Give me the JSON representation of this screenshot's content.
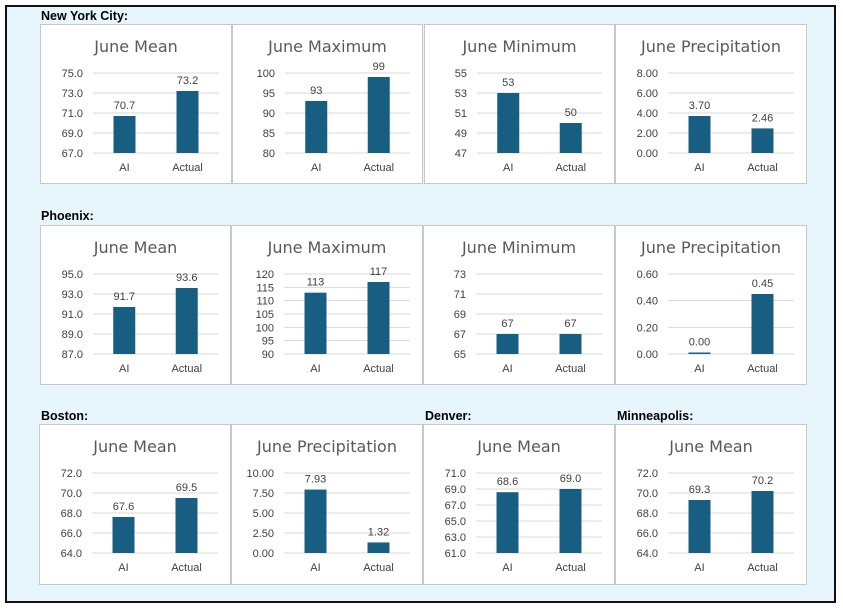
{
  "sections": {
    "nyc": "New York City:",
    "phoenix": "Phoenix:",
    "boston": "Boston:",
    "denver": "Denver:",
    "minneapolis": "Minneapolis:"
  },
  "theme": {
    "bar_color": "#175e82",
    "grid_color": "#d9d9d9",
    "text_color": "#404040"
  },
  "chart_data": [
    {
      "id": "nyc-mean",
      "type": "bar",
      "title": "June Mean",
      "categories": [
        "AI",
        "Actual"
      ],
      "values": [
        70.7,
        73.2
      ],
      "value_labels": [
        "70.7",
        "73.2"
      ],
      "yticks": [
        "67.0",
        "69.0",
        "71.0",
        "73.0",
        "75.0"
      ],
      "ylim": [
        67,
        75
      ]
    },
    {
      "id": "nyc-max",
      "type": "bar",
      "title": "June Maximum",
      "categories": [
        "AI",
        "Actual"
      ],
      "values": [
        93,
        99
      ],
      "value_labels": [
        "93",
        "99"
      ],
      "yticks": [
        "80",
        "85",
        "90",
        "95",
        "100"
      ],
      "ylim": [
        80,
        100
      ]
    },
    {
      "id": "nyc-min",
      "type": "bar",
      "title": "June Minimum",
      "categories": [
        "AI",
        "Actual"
      ],
      "values": [
        53,
        50
      ],
      "value_labels": [
        "53",
        "50"
      ],
      "yticks": [
        "47",
        "49",
        "51",
        "53",
        "55"
      ],
      "ylim": [
        47,
        55
      ]
    },
    {
      "id": "nyc-precip",
      "type": "bar",
      "title": "June Precipitation",
      "categories": [
        "AI",
        "Actual"
      ],
      "values": [
        3.7,
        2.46
      ],
      "value_labels": [
        "3.70",
        "2.46"
      ],
      "yticks": [
        "0.00",
        "2.00",
        "4.00",
        "6.00",
        "8.00"
      ],
      "ylim": [
        0,
        8
      ]
    },
    {
      "id": "phx-mean",
      "type": "bar",
      "title": "June Mean",
      "categories": [
        "AI",
        "Actual"
      ],
      "values": [
        91.7,
        93.6
      ],
      "value_labels": [
        "91.7",
        "93.6"
      ],
      "yticks": [
        "87.0",
        "89.0",
        "91.0",
        "93.0",
        "95.0"
      ],
      "ylim": [
        87,
        95
      ]
    },
    {
      "id": "phx-max",
      "type": "bar",
      "title": "June Maximum",
      "categories": [
        "AI",
        "Actual"
      ],
      "values": [
        113,
        117
      ],
      "value_labels": [
        "113",
        "117"
      ],
      "yticks": [
        "90",
        "95",
        "100",
        "105",
        "110",
        "115",
        "120"
      ],
      "ylim": [
        90,
        120
      ]
    },
    {
      "id": "phx-min",
      "type": "bar",
      "title": "June Minimum",
      "categories": [
        "AI",
        "Actual"
      ],
      "values": [
        67,
        67
      ],
      "value_labels": [
        "67",
        "67"
      ],
      "yticks": [
        "65",
        "67",
        "69",
        "71",
        "73"
      ],
      "ylim": [
        65,
        73
      ]
    },
    {
      "id": "phx-precip",
      "type": "bar",
      "title": "June Precipitation",
      "categories": [
        "AI",
        "Actual"
      ],
      "values": [
        0.0,
        0.45
      ],
      "value_labels": [
        "0.00",
        "0.45"
      ],
      "yticks": [
        "0.00",
        "0.20",
        "0.40",
        "0.60"
      ],
      "ylim": [
        0,
        0.6
      ]
    },
    {
      "id": "bos-mean",
      "type": "bar",
      "title": "June Mean",
      "categories": [
        "AI",
        "Actual"
      ],
      "values": [
        67.6,
        69.5
      ],
      "value_labels": [
        "67.6",
        "69.5"
      ],
      "yticks": [
        "64.0",
        "66.0",
        "68.0",
        "70.0",
        "72.0"
      ],
      "ylim": [
        64,
        72
      ]
    },
    {
      "id": "bos-precip",
      "type": "bar",
      "title": "June Precipitation",
      "categories": [
        "AI",
        "Actual"
      ],
      "values": [
        7.93,
        1.32
      ],
      "value_labels": [
        "7.93",
        "1.32"
      ],
      "yticks": [
        "0.00",
        "2.50",
        "5.00",
        "7.50",
        "10.00"
      ],
      "ylim": [
        0,
        10
      ]
    },
    {
      "id": "den-mean",
      "type": "bar",
      "title": "June Mean",
      "categories": [
        "AI",
        "Actual"
      ],
      "values": [
        68.6,
        69.0
      ],
      "value_labels": [
        "68.6",
        "69.0"
      ],
      "yticks": [
        "61.0",
        "63.0",
        "65.0",
        "67.0",
        "69.0",
        "71.0"
      ],
      "ylim": [
        61,
        71
      ]
    },
    {
      "id": "min-mean",
      "type": "bar",
      "title": "June Mean",
      "categories": [
        "AI",
        "Actual"
      ],
      "values": [
        69.3,
        70.2
      ],
      "value_labels": [
        "69.3",
        "70.2"
      ],
      "yticks": [
        "64.0",
        "66.0",
        "68.0",
        "70.0",
        "72.0"
      ],
      "ylim": [
        64,
        72
      ]
    }
  ]
}
